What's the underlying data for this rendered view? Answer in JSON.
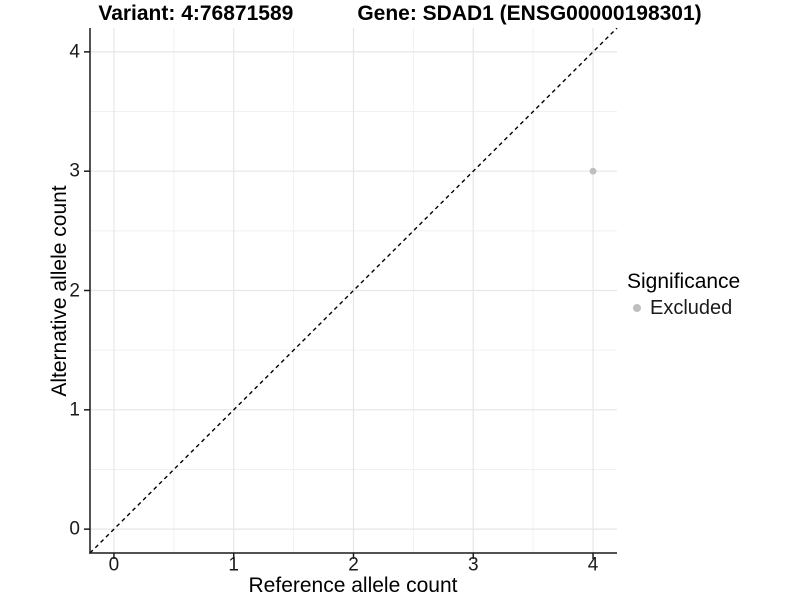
{
  "chart_data": {
    "type": "scatter",
    "title_left": "Variant: 4:76871589",
    "title_right": "Gene: SDAD1 (ENSG00000198301)",
    "xlabel": "Reference allele count",
    "ylabel": "Alternative allele count",
    "xlim": [
      -0.2,
      4.2
    ],
    "ylim": [
      -0.2,
      4.2
    ],
    "x_ticks": [
      0,
      1,
      2,
      3,
      4
    ],
    "y_ticks": [
      0,
      1,
      2,
      3,
      4
    ],
    "minor_gridlines": [
      0.5,
      1.5,
      2.5,
      3.5
    ],
    "grid": "major+minor",
    "identity_line": {
      "slope": 1,
      "intercept": 0,
      "style": "dashed",
      "color": "#000000"
    },
    "series": [
      {
        "name": "Excluded",
        "color": "#bfbfbf",
        "points": [
          {
            "x": 4,
            "y": 3
          }
        ]
      }
    ],
    "legend": {
      "title": "Significance",
      "position": "right",
      "items": [
        {
          "label": "Excluded",
          "color": "#bfbfbf"
        }
      ]
    },
    "colors": {
      "background": "#ffffff",
      "axis_line": "#1a1a1a",
      "tick_mark": "#1a1a1a",
      "tick_label": "#1a1a1a",
      "grid_major": "#e6e6e6",
      "grid_minor": "#f1f1f1",
      "point": "#bfbfbf"
    }
  }
}
